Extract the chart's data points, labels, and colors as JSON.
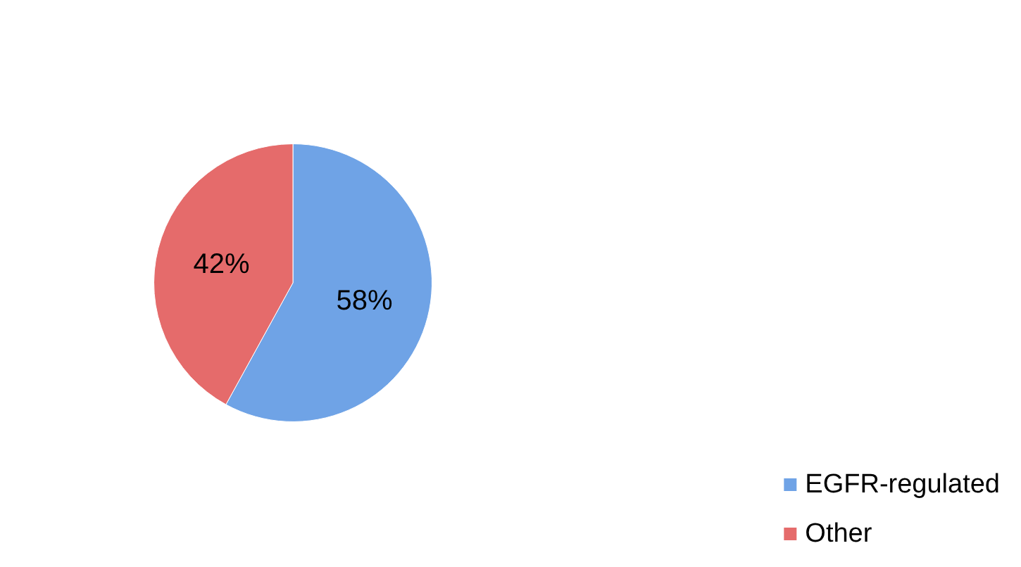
{
  "chart_data": {
    "type": "pie",
    "categories": [
      "EGFR-regulated",
      "Other"
    ],
    "values": [
      58,
      42
    ],
    "colors": [
      "#6fa3e6",
      "#e56b6b"
    ],
    "value_labels": [
      "58%",
      "42%"
    ],
    "legend": "right"
  }
}
